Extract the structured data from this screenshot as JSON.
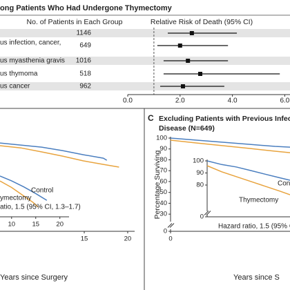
{
  "chart_data": [
    {
      "type": "forest",
      "title": "ong Patients Who Had Undergone Thymectomy",
      "count_header": "No. of Patients in Each Group",
      "value_header": "Relative Risk of Death (95% CI)",
      "categories": [
        null,
        "us infection, cancer,",
        "us myasthenia gravis",
        "us thymoma",
        "us cancer"
      ],
      "counts": [
        1146,
        649,
        1016,
        518,
        962
      ],
      "values": [
        2.45,
        2.0,
        2.3,
        2.77,
        2.11
      ],
      "ci_low": [
        1.53,
        1.13,
        1.37,
        1.37,
        1.24
      ],
      "ci_high": [
        4.17,
        3.83,
        3.83,
        5.81,
        3.69
      ],
      "xlim": [
        0,
        6.2
      ],
      "xticks": [
        {
          "value": 0,
          "label": "0.0"
        },
        {
          "value": 2,
          "label": "2.0"
        },
        {
          "value": 4,
          "label": "4.0"
        },
        {
          "value": 6,
          "label": "6.0"
        }
      ],
      "ref_line": 1,
      "shaded_rows": true,
      "color": "#111111"
    },
    {
      "type": "line",
      "x_label": "Years since Surgery",
      "xlim": [
        5.3,
        20.8
      ],
      "xticks": [
        15,
        20
      ],
      "ylim": [
        0,
        100
      ],
      "y_break": [
        0,
        25
      ],
      "yticks": [],
      "series": [
        {
          "color": "#4a7ebf",
          "x": [
            5.3,
            7.7,
            10.1,
            12.5,
            14.9,
            17.2,
            17.6
          ],
          "values": [
            95.5,
            93.6,
            91.7,
            88.5,
            84.7,
            81.5,
            79.6
          ]
        },
        {
          "color": "#e8a33d",
          "x": [
            5.3,
            7.7,
            10.1,
            12.5,
            14.9,
            17.2,
            19.0
          ],
          "values": [
            93.0,
            91.0,
            87.3,
            83.4,
            79.0,
            75.8,
            73.3
          ]
        }
      ]
    },
    {
      "type": "line",
      "xlim": [
        7.6,
        21.9
      ],
      "xticks": [
        10,
        15,
        20
      ],
      "ylim": [
        0,
        100
      ],
      "y_break": [
        0,
        60
      ],
      "yticks": [],
      "annotations": [
        "Control",
        "ymectomy",
        "atio, 1.5 (95% CI, 1.3–1.7)"
      ],
      "series": [
        {
          "color": "#4a7ebf",
          "x": [
            7.6,
            10,
            12.5,
            15,
            17.3
          ],
          "values": [
            87.4,
            83.5,
            78.5,
            73.0,
            67.4
          ]
        },
        {
          "color": "#e8a33d",
          "x": [
            7.6,
            10,
            12.5,
            14.5,
            15.5
          ],
          "values": [
            83.4,
            78.0,
            71.0,
            65.5,
            61.7
          ]
        }
      ]
    },
    {
      "type": "line",
      "panel_label": "C",
      "title_lines": [
        "Excluding Patients with Previous Infectio",
        "Disease (N=649)"
      ],
      "y_label": "Percentage Surviving",
      "x_label": "Years since S",
      "xlim": [
        0,
        13.7
      ],
      "xticks": [
        0
      ],
      "ylim": [
        0,
        100
      ],
      "y_break": [
        0,
        25
      ],
      "yticks": [
        0,
        30,
        40,
        50,
        60,
        70,
        80,
        90,
        100
      ],
      "series": [
        {
          "color": "#4a7ebf",
          "x": [
            0,
            3,
            6,
            9,
            12,
            13.7
          ],
          "values": [
            100,
            98.1,
            96.2,
            94.3,
            92.4,
            91.7
          ]
        },
        {
          "color": "#e8a33d",
          "x": [
            0,
            3,
            6,
            9,
            12,
            13.7
          ],
          "values": [
            98.1,
            95.5,
            93.0,
            90.5,
            87.9,
            86.6
          ]
        }
      ]
    },
    {
      "type": "line",
      "xlim": [
        0,
        17.1
      ],
      "xticks": [],
      "ylim": [
        0,
        100
      ],
      "y_break": [
        0,
        60
      ],
      "yticks": [
        0,
        80,
        90,
        100
      ],
      "annotations": [
        "Control",
        "Thymectomy",
        "Hazard ratio, 1.5 (95% C"
      ],
      "series": [
        {
          "color": "#4a7ebf",
          "x": [
            0,
            3,
            6,
            9,
            12,
            15,
            17.1
          ],
          "values": [
            100,
            97,
            95,
            92,
            89,
            86,
            84
          ]
        },
        {
          "color": "#e8a33d",
          "x": [
            0,
            3,
            6,
            9,
            12,
            15,
            17.1
          ],
          "values": [
            96,
            91,
            87,
            83,
            79,
            75,
            72
          ]
        }
      ]
    }
  ]
}
